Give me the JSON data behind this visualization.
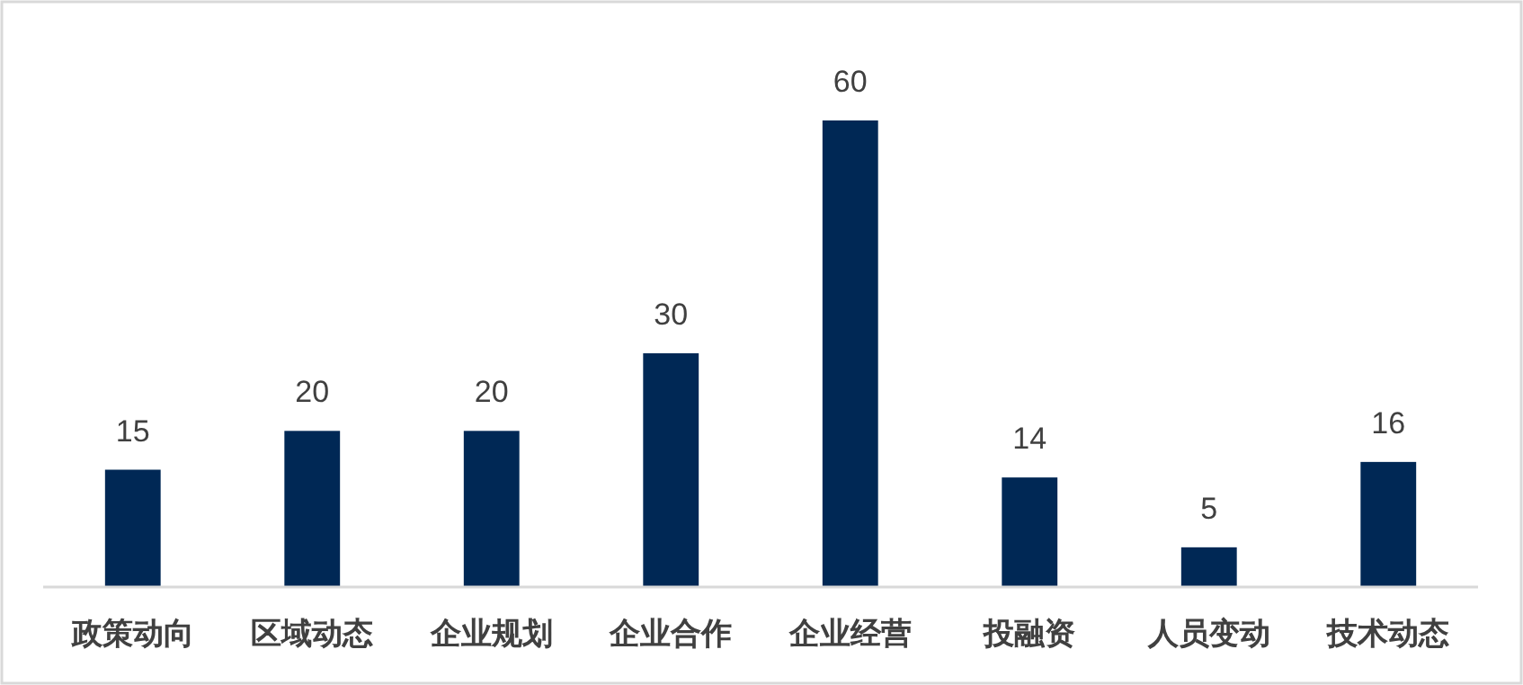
{
  "chart_data": {
    "type": "bar",
    "categories": [
      "政策动向",
      "区域动态",
      "企业规划",
      "企业合作",
      "企业经营",
      "投融资",
      "人员变动",
      "技术动态"
    ],
    "values": [
      15,
      20,
      20,
      30,
      60,
      14,
      5,
      16
    ],
    "color": "#002855",
    "data_labels": true,
    "grid": false
  }
}
